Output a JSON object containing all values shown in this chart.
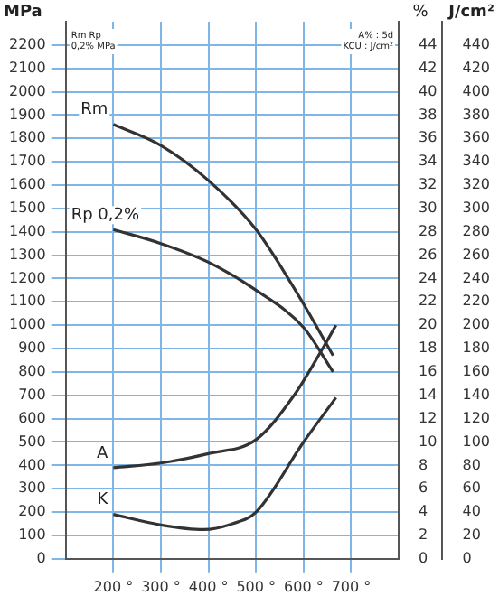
{
  "chart_data": {
    "type": "line",
    "ylabel": "MPa",
    "y2label": "%",
    "y3label": "J/cm²",
    "marker": "none",
    "legend": false,
    "grid": true,
    "annotations": [
      "Rm Rp 0,2% MPa",
      "A% : 5d KCU : J/cm²"
    ],
    "xlim": [
      100,
      800
    ],
    "xticks": [
      {
        "value": 200,
        "label": "200 °"
      },
      {
        "value": 300,
        "label": "300 °"
      },
      {
        "value": 400,
        "label": "400 °"
      },
      {
        "value": 500,
        "label": "500 °"
      },
      {
        "value": 600,
        "label": "600 °"
      },
      {
        "value": 700,
        "label": "700 °"
      }
    ],
    "ylim": [
      0,
      2300
    ],
    "yticks": [
      0,
      100,
      200,
      300,
      400,
      500,
      600,
      700,
      800,
      900,
      1000,
      1100,
      1200,
      1300,
      1400,
      1500,
      1600,
      1700,
      1800,
      1900,
      2000,
      2100,
      2200
    ],
    "y2lim": [
      0,
      46
    ],
    "y2ticks": [
      0,
      2,
      4,
      6,
      8,
      10,
      12,
      14,
      16,
      18,
      20,
      22,
      24,
      26,
      28,
      30,
      32,
      34,
      36,
      38,
      40,
      42,
      44
    ],
    "y3lim": [
      0,
      460
    ],
    "y3ticks": [
      0,
      20,
      40,
      60,
      80,
      100,
      120,
      140,
      160,
      180,
      200,
      220,
      240,
      260,
      280,
      300,
      320,
      340,
      360,
      380,
      400,
      420,
      440
    ],
    "series": [
      {
        "name": "Rm",
        "color": "#333333",
        "x": [
          200,
          300,
          400,
          500,
          590,
          662
        ],
        "values": [
          1860,
          1770,
          1620,
          1410,
          1125,
          870
        ]
      },
      {
        "name": "Rp 0,2%",
        "color": "#333333",
        "x": [
          200,
          300,
          400,
          500,
          600,
          662
        ],
        "values": [
          1410,
          1350,
          1270,
          1150,
          990,
          800
        ]
      },
      {
        "name": "A",
        "color": "#333333",
        "axis": "y2",
        "x": [
          200,
          300,
          400,
          500,
          580,
          640,
          668
        ],
        "values": [
          7.8,
          8.2,
          9,
          10.2,
          14,
          18,
          20
        ]
      },
      {
        "name": "K",
        "color": "#333333",
        "axis": "y3",
        "x": [
          200,
          300,
          390,
          450,
          500,
          600,
          668
        ],
        "values": [
          38,
          29,
          25,
          30,
          40,
          100,
          138
        ]
      }
    ]
  }
}
